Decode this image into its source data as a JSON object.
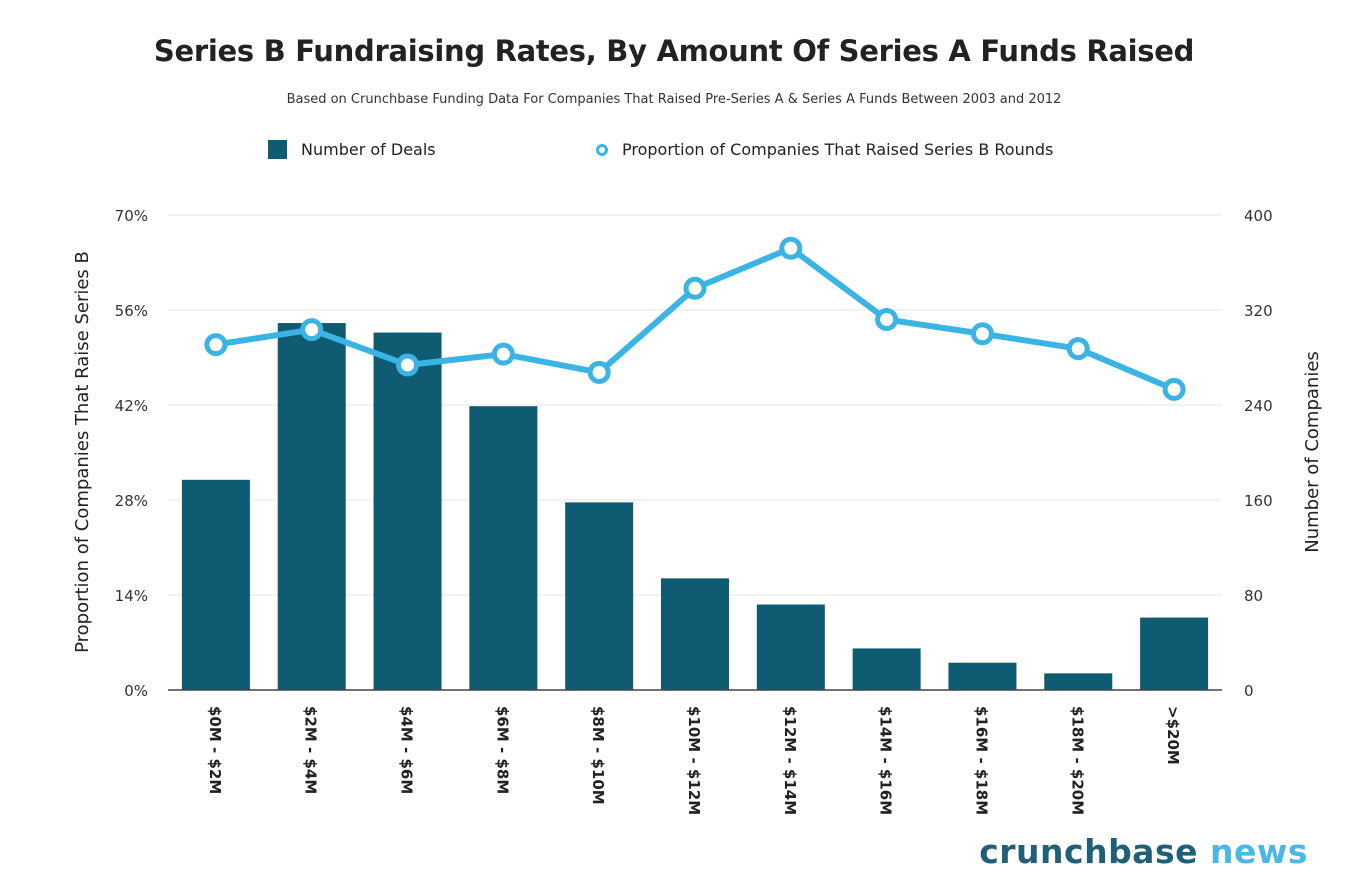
{
  "chart_data": {
    "type": "bar+line",
    "title": "Series B Fundraising Rates, By Amount Of Series A Funds Raised",
    "subtitle": "Based on Crunchbase Funding Data For Companies That Raised Pre-Series A & Series A Funds Between 2003 and 2012",
    "categories": [
      "$0M - $2M",
      "$2M - $4M",
      "$4M - $6M",
      "$6M - $8M",
      "$8M - $10M",
      "$10M - $12M",
      "$12M - $14M",
      "$14M - $16M",
      "$16M - $18M",
      "$18M - $20M",
      ">$20M"
    ],
    "series": [
      {
        "name": "Number of Deals",
        "type": "bar",
        "axis": "right",
        "values": [
          177,
          309,
          301,
          239,
          158,
          94,
          72,
          35,
          23,
          14,
          61
        ]
      },
      {
        "name": "Proportion of Companies That Raised Series B Rounds",
        "type": "line",
        "axis": "left",
        "values": [
          50.9,
          53.1,
          47.9,
          49.5,
          46.8,
          59.2,
          65.1,
          54.6,
          52.5,
          50.3,
          44.3
        ]
      }
    ],
    "left_axis": {
      "label": "Proportion of Companies That Raise Series B",
      "range": [
        0,
        70
      ],
      "ticks": [
        "0%",
        "14%",
        "28%",
        "42%",
        "56%",
        "70%"
      ]
    },
    "right_axis": {
      "label": "Number of Companies",
      "range": [
        0,
        400
      ],
      "ticks": [
        "0",
        "80",
        "160",
        "240",
        "320",
        "400"
      ]
    },
    "grid": true,
    "legend_position": "top-center",
    "colors": {
      "bar": "#0f5b72",
      "line": "#3ab3e5",
      "grid": "#e6e6e6"
    }
  },
  "brand": {
    "part1": "crunchbase",
    "part2": "news"
  }
}
